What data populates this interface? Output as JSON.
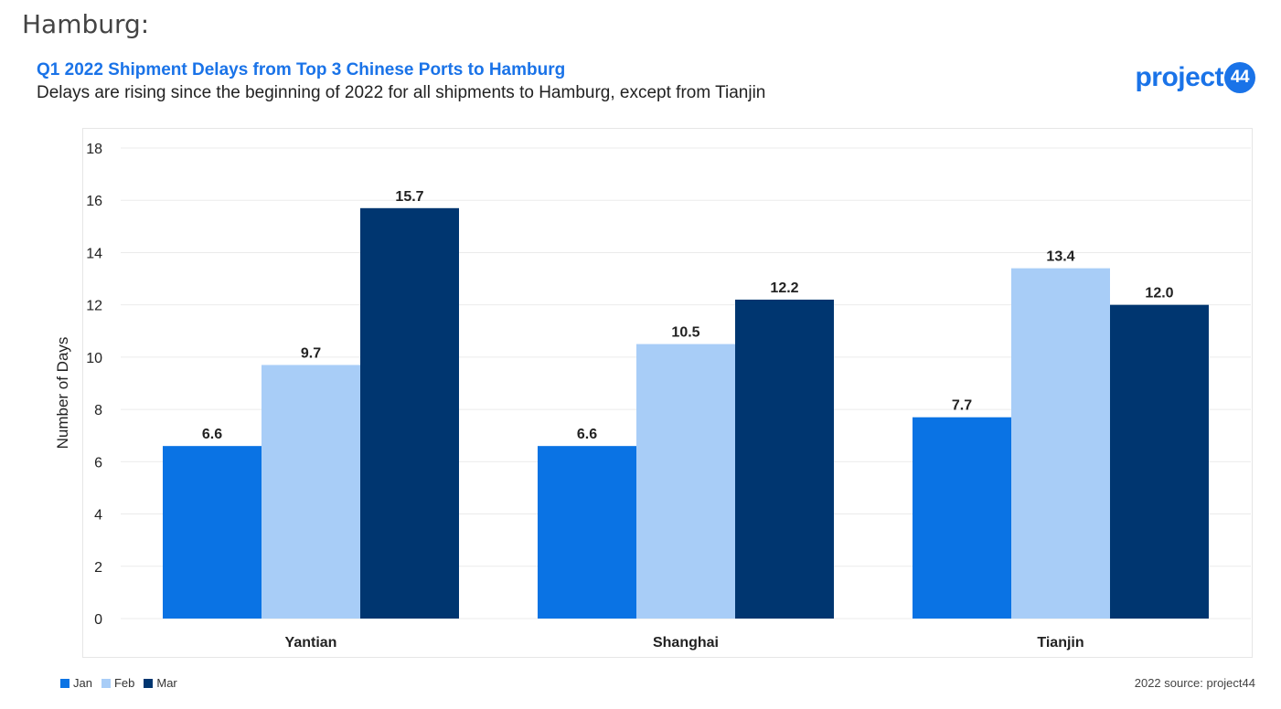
{
  "page": {
    "heading": "Hamburg:"
  },
  "logo": {
    "text": "project",
    "badge": "44"
  },
  "source": "2022 source: project44",
  "colors": {
    "title": "#1a73e8",
    "Jan": "#0a73e4",
    "Feb": "#a8cdf7",
    "Mar": "#003670"
  },
  "chart_data": {
    "type": "bar",
    "title": "Q1 2022 Shipment Delays from Top 3 Chinese Ports to Hamburg",
    "subtitle": "Delays are rising since the beginning of 2022 for all shipments to Hamburg, except from Tianjin",
    "xlabel": "",
    "ylabel": "Number of Days",
    "ylim": [
      0,
      18
    ],
    "yticks": [
      0,
      2,
      4,
      6,
      8,
      10,
      12,
      14,
      16,
      18
    ],
    "grid": true,
    "legend": "bottom-left",
    "categories": [
      "Yantian",
      "Shanghai",
      "Tianjin"
    ],
    "series": [
      {
        "name": "Jan",
        "values": [
          6.6,
          6.6,
          7.7
        ],
        "labels": [
          "6.6",
          "6.6",
          "7.7"
        ]
      },
      {
        "name": "Feb",
        "values": [
          9.7,
          10.5,
          13.4
        ],
        "labels": [
          "9.7",
          "10.5",
          "13.4"
        ]
      },
      {
        "name": "Mar",
        "values": [
          15.7,
          12.2,
          12.0
        ],
        "labels": [
          "15.7",
          "12.2",
          "12.0"
        ]
      }
    ]
  }
}
